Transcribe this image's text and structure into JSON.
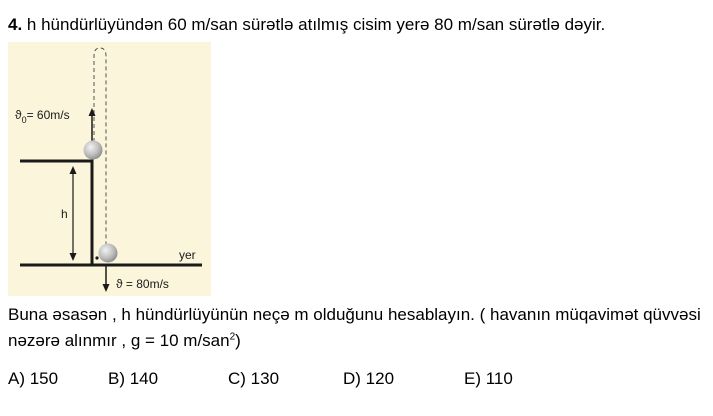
{
  "question": {
    "number": "4.",
    "text": "h hündürlüyündən 60 m/san sürətlə atılmış cisim yerə 80 m/san sürətlə dəyir."
  },
  "figure": {
    "initial_velocity_label": "ϑ",
    "initial_velocity_subscript": "0",
    "initial_velocity_value": "= 60m/s",
    "height_label": "h",
    "ground_label": "yer",
    "final_velocity_label": "ϑ = 80m/s",
    "colors": {
      "background": "#fbf5dc",
      "ball": "#bdbdbd",
      "lines": "#1a1a1a"
    }
  },
  "instruction": {
    "line1": "Buna əsasən , h hündürlüyünün neçə m olduğunu hesablayın. ( havanın müqavimət qüvvəsi",
    "line2_before": "nəzərə alınmır , g = 10 m/san",
    "line2_sup": "2",
    "line2_after": ")"
  },
  "options": [
    {
      "label": "A) 150"
    },
    {
      "label": "B) 140"
    },
    {
      "label": "C) 130"
    },
    {
      "label": "D) 120"
    },
    {
      "label": "E) 110"
    }
  ]
}
